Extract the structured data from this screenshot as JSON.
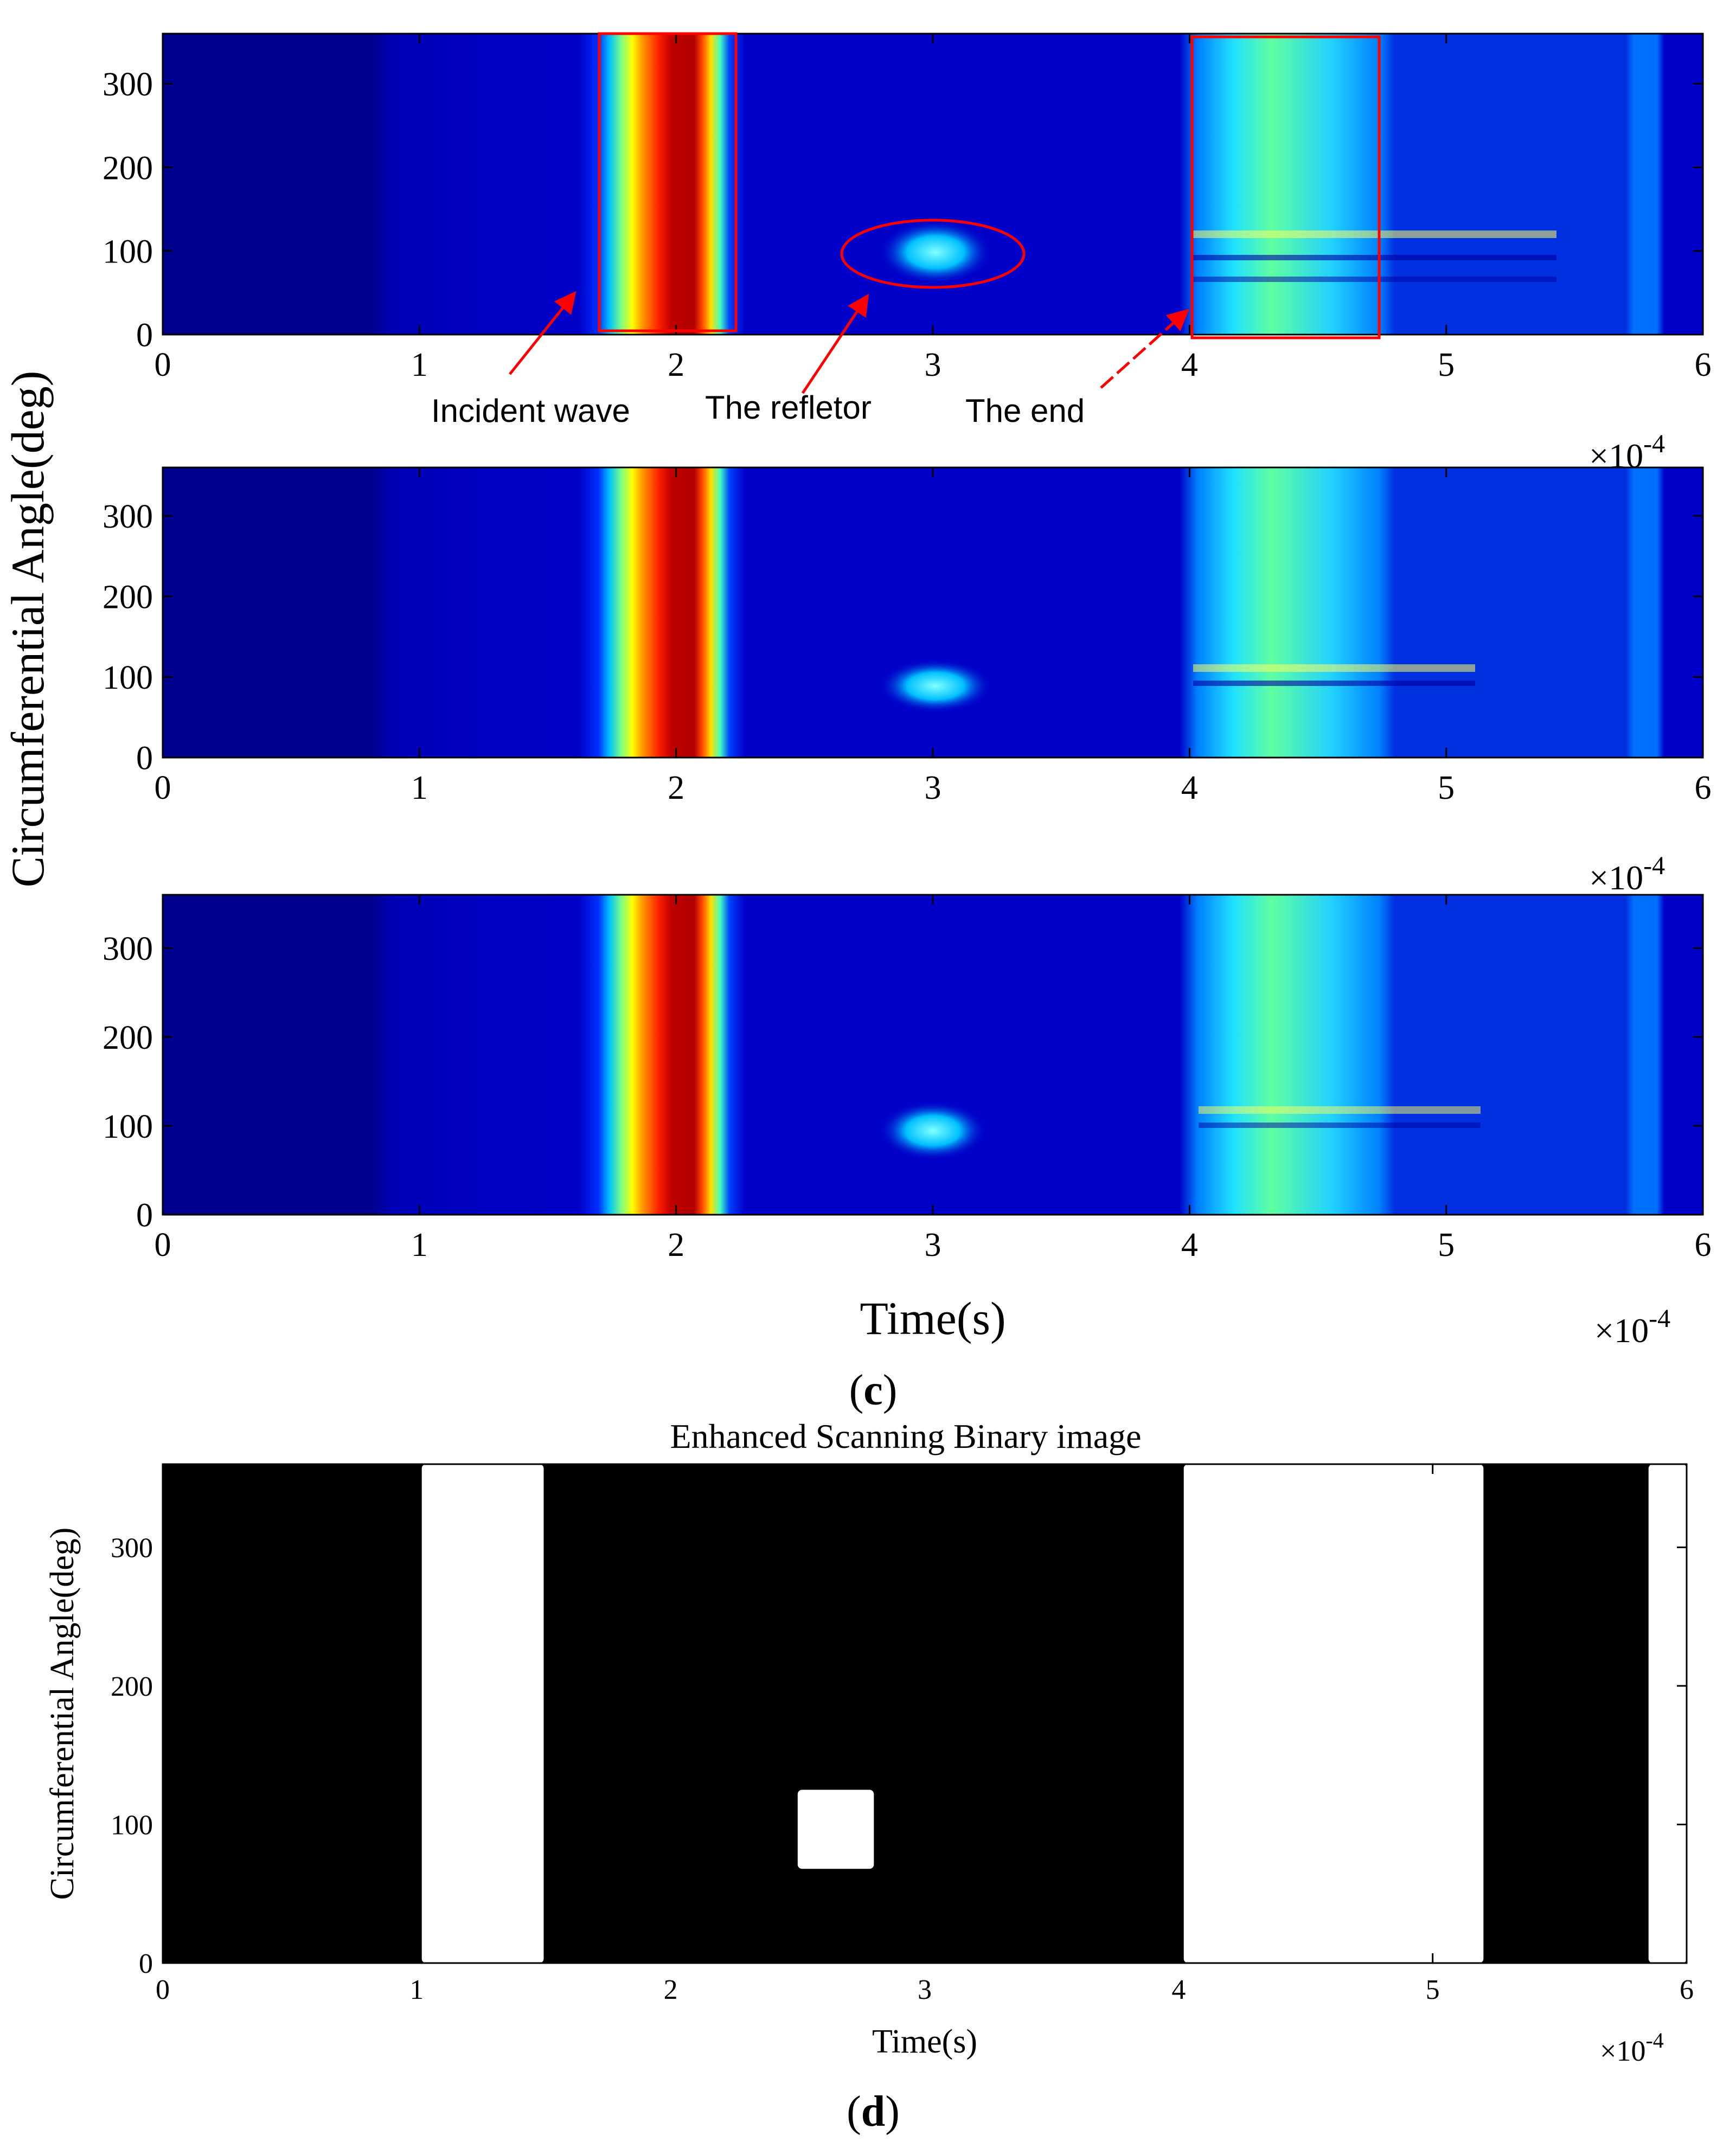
{
  "figure": {
    "label_c": "(c)",
    "label_c_letter": "c",
    "label_d": "(d)",
    "label_d_letter": "d",
    "shared_ylabel_c": "Circumferential Angle(deg)",
    "xlabel_c": "Time(s)",
    "multiplier_base": "×10",
    "multiplier_exp": "-4",
    "colors": {
      "colormap": [
        "#00008f",
        "#0000ff",
        "#0080ff",
        "#00ffff",
        "#80ff80",
        "#ffff00",
        "#ff8000",
        "#ff0000",
        "#800000"
      ],
      "annotation": "#ff0000",
      "background": "#00008f"
    }
  },
  "chart_data": [
    {
      "id": "c1",
      "type": "heatmap",
      "title": "",
      "xlabel": "",
      "ylabel": "",
      "xlim": [
        0,
        6
      ],
      "ylim": [
        0,
        360
      ],
      "xticks": [
        "0",
        "1",
        "2",
        "3",
        "4",
        "5",
        "6"
      ],
      "yticks": [
        "0",
        "100",
        "200",
        "300"
      ],
      "x_scale": "×10^-4",
      "annotations": [
        {
          "text": "Incident wave",
          "box": [
            1.7,
            2.25
          ]
        },
        {
          "text": "The refletor",
          "ellipse_center": [
            3.0,
            90
          ]
        },
        {
          "text": "The end",
          "box": [
            4.0,
            4.75
          ]
        }
      ]
    },
    {
      "id": "c2",
      "type": "heatmap",
      "title": "",
      "xlabel": "",
      "ylabel": "",
      "xlim": [
        0,
        6
      ],
      "ylim": [
        0,
        360
      ],
      "xticks": [
        "0",
        "1",
        "2",
        "3",
        "4",
        "5",
        "6"
      ],
      "yticks": [
        "0",
        "100",
        "200",
        "300"
      ],
      "x_scale": "×10^-4"
    },
    {
      "id": "c3",
      "type": "heatmap",
      "title": "",
      "xlabel": "Time(s)",
      "ylabel": "",
      "xlim": [
        0,
        6
      ],
      "ylim": [
        0,
        360
      ],
      "xticks": [
        "0",
        "1",
        "2",
        "3",
        "4",
        "5",
        "6"
      ],
      "yticks": [
        "0",
        "100",
        "200",
        "300"
      ],
      "x_scale": "×10^-4"
    },
    {
      "id": "d",
      "type": "heatmap",
      "title": "Enhanced Scanning Binary image",
      "xlabel": "Time(s)",
      "ylabel": "Circumferential Angle(deg)",
      "xlim": [
        0,
        6
      ],
      "ylim": [
        0,
        360
      ],
      "xticks": [
        "0",
        "1",
        "2",
        "3",
        "4",
        "5",
        "6"
      ],
      "yticks": [
        "0",
        "100",
        "200",
        "300"
      ],
      "x_scale": "×10^-4",
      "white_regions": [
        {
          "x": [
            1.02,
            1.5
          ],
          "y": [
            0,
            360
          ]
        },
        {
          "x": [
            2.5,
            2.8
          ],
          "y": [
            68,
            125
          ]
        },
        {
          "x": [
            4.02,
            5.2
          ],
          "y": [
            0,
            360
          ]
        },
        {
          "x": [
            5.85,
            6.0
          ],
          "y": [
            0,
            360
          ]
        }
      ]
    }
  ]
}
